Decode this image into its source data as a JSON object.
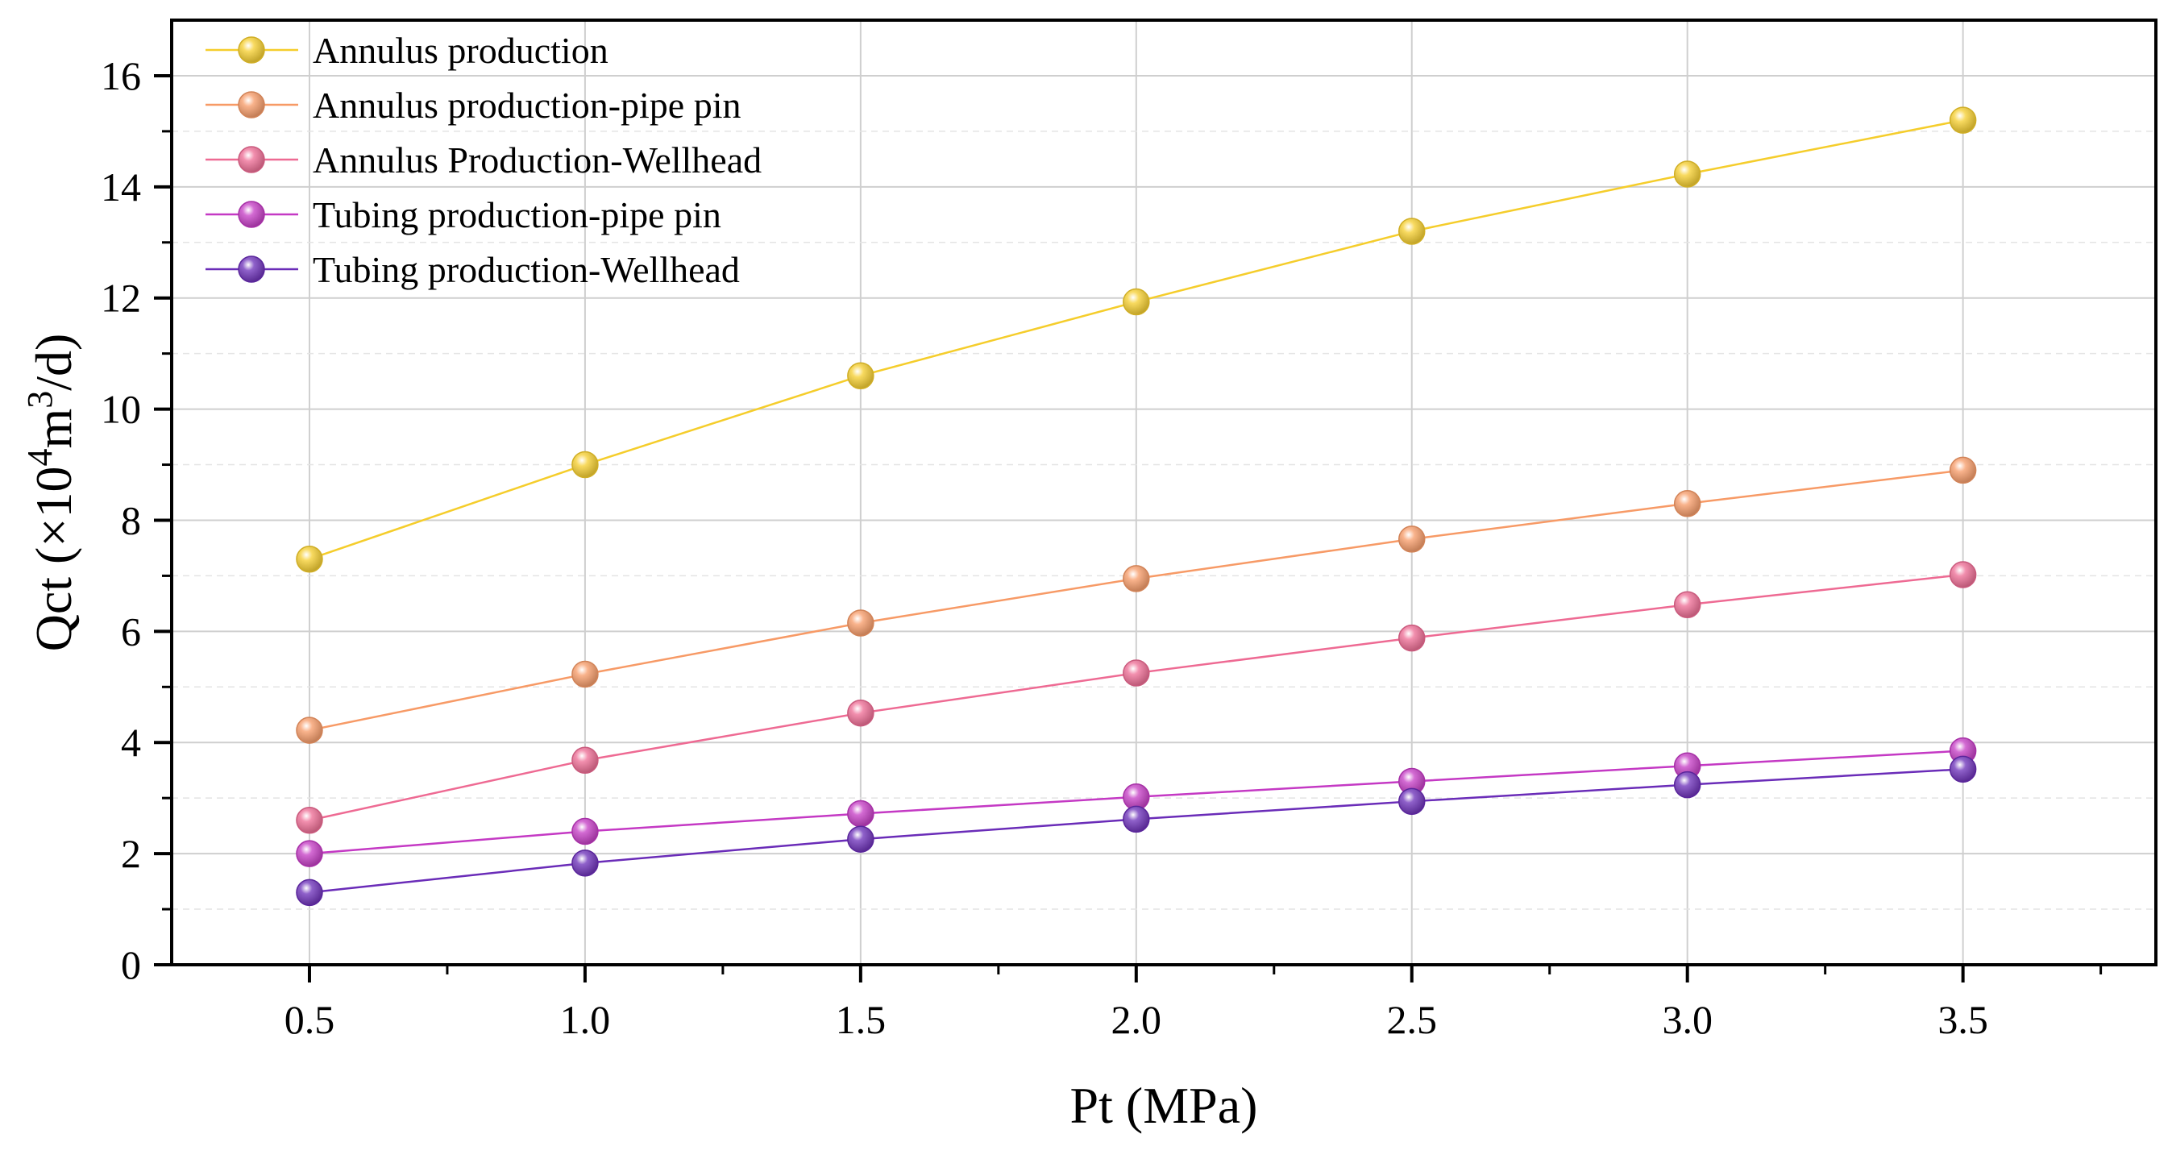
{
  "chart_data": {
    "type": "line",
    "title": "",
    "xlabel": "Pt (MPa)",
    "ylabel": {
      "main": "Qct (×10",
      "sup1": "4",
      "mid": "m",
      "sup2": "3",
      "end": "/d)"
    },
    "xlim": [
      0.25,
      3.85
    ],
    "ylim": [
      0,
      17
    ],
    "x": [
      0.5,
      1.0,
      1.5,
      2.0,
      2.5,
      3.0,
      3.5
    ],
    "x_ticks": [
      "0.5",
      "1.0",
      "1.5",
      "2.0",
      "2.5",
      "3.0",
      "3.5"
    ],
    "y_ticks": [
      "0",
      "2",
      "4",
      "6",
      "8",
      "10",
      "12",
      "14",
      "16"
    ],
    "grid": true,
    "legend_position": "top-left",
    "series": [
      {
        "name": "Annulus production",
        "color": "#F5CD2B",
        "values": [
          7.3,
          9.0,
          10.6,
          11.93,
          13.2,
          14.23,
          15.2
        ]
      },
      {
        "name": "Annulus production-pipe pin",
        "color": "#F79A66",
        "values": [
          4.22,
          5.23,
          6.15,
          6.95,
          7.66,
          8.3,
          8.9
        ]
      },
      {
        "name": "Annulus Production-Wellhead",
        "color": "#EE6A93",
        "values": [
          2.6,
          3.68,
          4.53,
          5.25,
          5.88,
          6.48,
          7.02
        ]
      },
      {
        "name": "Tubing production-pipe pin",
        "color": "#C439C4",
        "values": [
          2.0,
          2.4,
          2.72,
          3.02,
          3.3,
          3.58,
          3.85
        ]
      },
      {
        "name": "Tubing production-Wellhead",
        "color": "#6A2CB8",
        "values": [
          1.3,
          1.83,
          2.26,
          2.62,
          2.94,
          3.24,
          3.52
        ]
      }
    ]
  }
}
